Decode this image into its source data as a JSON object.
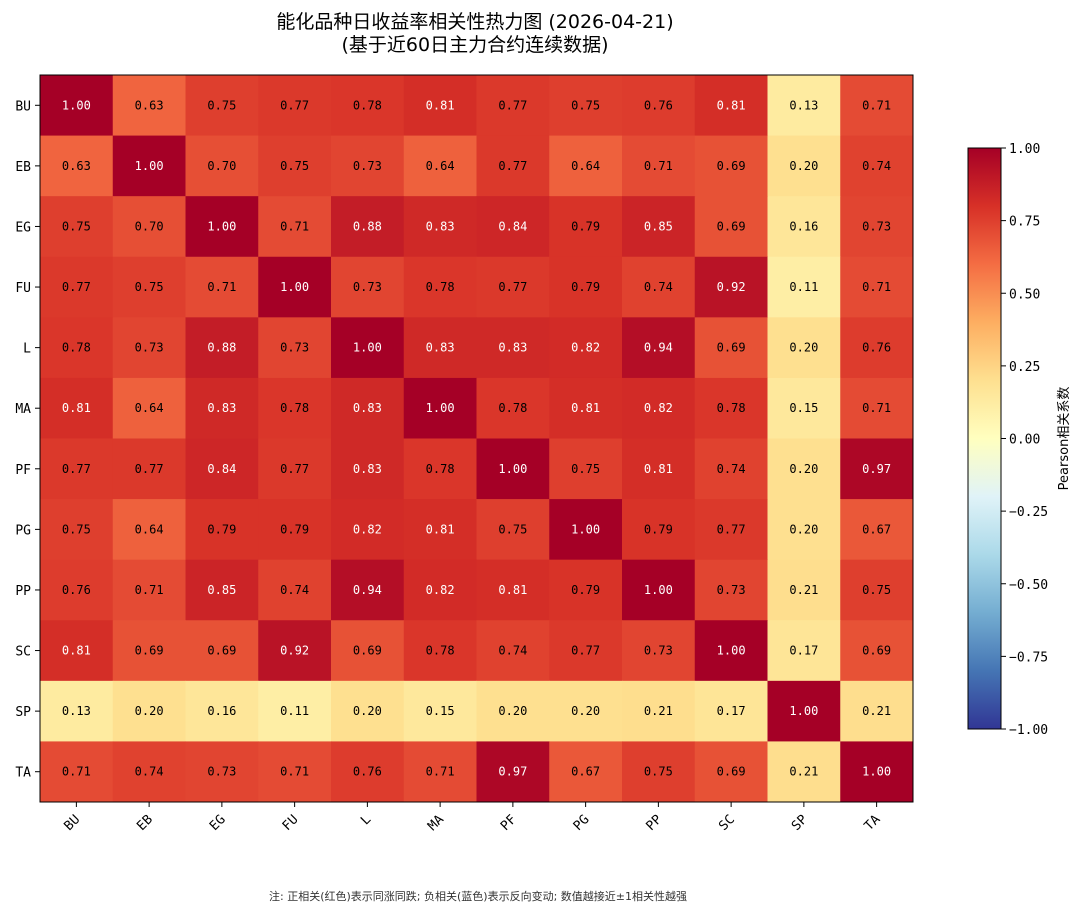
{
  "chart_data": {
    "type": "heatmap",
    "title": "能化品种日收益率相关性热力图 (2026-04-21)",
    "subtitle": "(基于近60日主力合约连续数据)",
    "x_categories": [
      "BU",
      "EB",
      "EG",
      "FU",
      "L",
      "MA",
      "PF",
      "PG",
      "PP",
      "SC",
      "SP",
      "TA"
    ],
    "y_categories": [
      "BU",
      "EB",
      "EG",
      "FU",
      "L",
      "MA",
      "PF",
      "PG",
      "PP",
      "SC",
      "SP",
      "TA"
    ],
    "values": [
      [
        1.0,
        0.63,
        0.75,
        0.77,
        0.78,
        0.81,
        0.77,
        0.75,
        0.76,
        0.81,
        0.13,
        0.71
      ],
      [
        0.63,
        1.0,
        0.7,
        0.75,
        0.73,
        0.64,
        0.77,
        0.64,
        0.71,
        0.69,
        0.2,
        0.74
      ],
      [
        0.75,
        0.7,
        1.0,
        0.71,
        0.88,
        0.83,
        0.84,
        0.79,
        0.85,
        0.69,
        0.16,
        0.73
      ],
      [
        0.77,
        0.75,
        0.71,
        1.0,
        0.73,
        0.78,
        0.77,
        0.79,
        0.74,
        0.92,
        0.11,
        0.71
      ],
      [
        0.78,
        0.73,
        0.88,
        0.73,
        1.0,
        0.83,
        0.83,
        0.82,
        0.94,
        0.69,
        0.2,
        0.76
      ],
      [
        0.81,
        0.64,
        0.83,
        0.78,
        0.83,
        1.0,
        0.78,
        0.81,
        0.82,
        0.78,
        0.15,
        0.71
      ],
      [
        0.77,
        0.77,
        0.84,
        0.77,
        0.83,
        0.78,
        1.0,
        0.75,
        0.81,
        0.74,
        0.2,
        0.97
      ],
      [
        0.75,
        0.64,
        0.79,
        0.79,
        0.82,
        0.81,
        0.75,
        1.0,
        0.79,
        0.77,
        0.2,
        0.67
      ],
      [
        0.76,
        0.71,
        0.85,
        0.74,
        0.94,
        0.82,
        0.81,
        0.79,
        1.0,
        0.73,
        0.21,
        0.75
      ],
      [
        0.81,
        0.69,
        0.69,
        0.92,
        0.69,
        0.78,
        0.74,
        0.77,
        0.73,
        1.0,
        0.17,
        0.69
      ],
      [
        0.13,
        0.2,
        0.16,
        0.11,
        0.2,
        0.15,
        0.2,
        0.2,
        0.21,
        0.17,
        1.0,
        0.21
      ],
      [
        0.71,
        0.74,
        0.73,
        0.71,
        0.76,
        0.71,
        0.97,
        0.67,
        0.75,
        0.69,
        0.21,
        1.0
      ]
    ],
    "colormap": "RdYlBu_r",
    "vmin": -1.0,
    "vmax": 1.0,
    "colorbar": {
      "label": "Pearson相关系数",
      "ticks": [
        "1.00",
        "0.75",
        "0.50",
        "0.25",
        "0.00",
        "-0.25",
        "-0.50",
        "-0.75",
        "-1.00"
      ]
    },
    "note": "注: 正相关(红色)表示同涨同跌; 负相关(蓝色)表示反向变动; 数值越接近±1相关性越强"
  }
}
